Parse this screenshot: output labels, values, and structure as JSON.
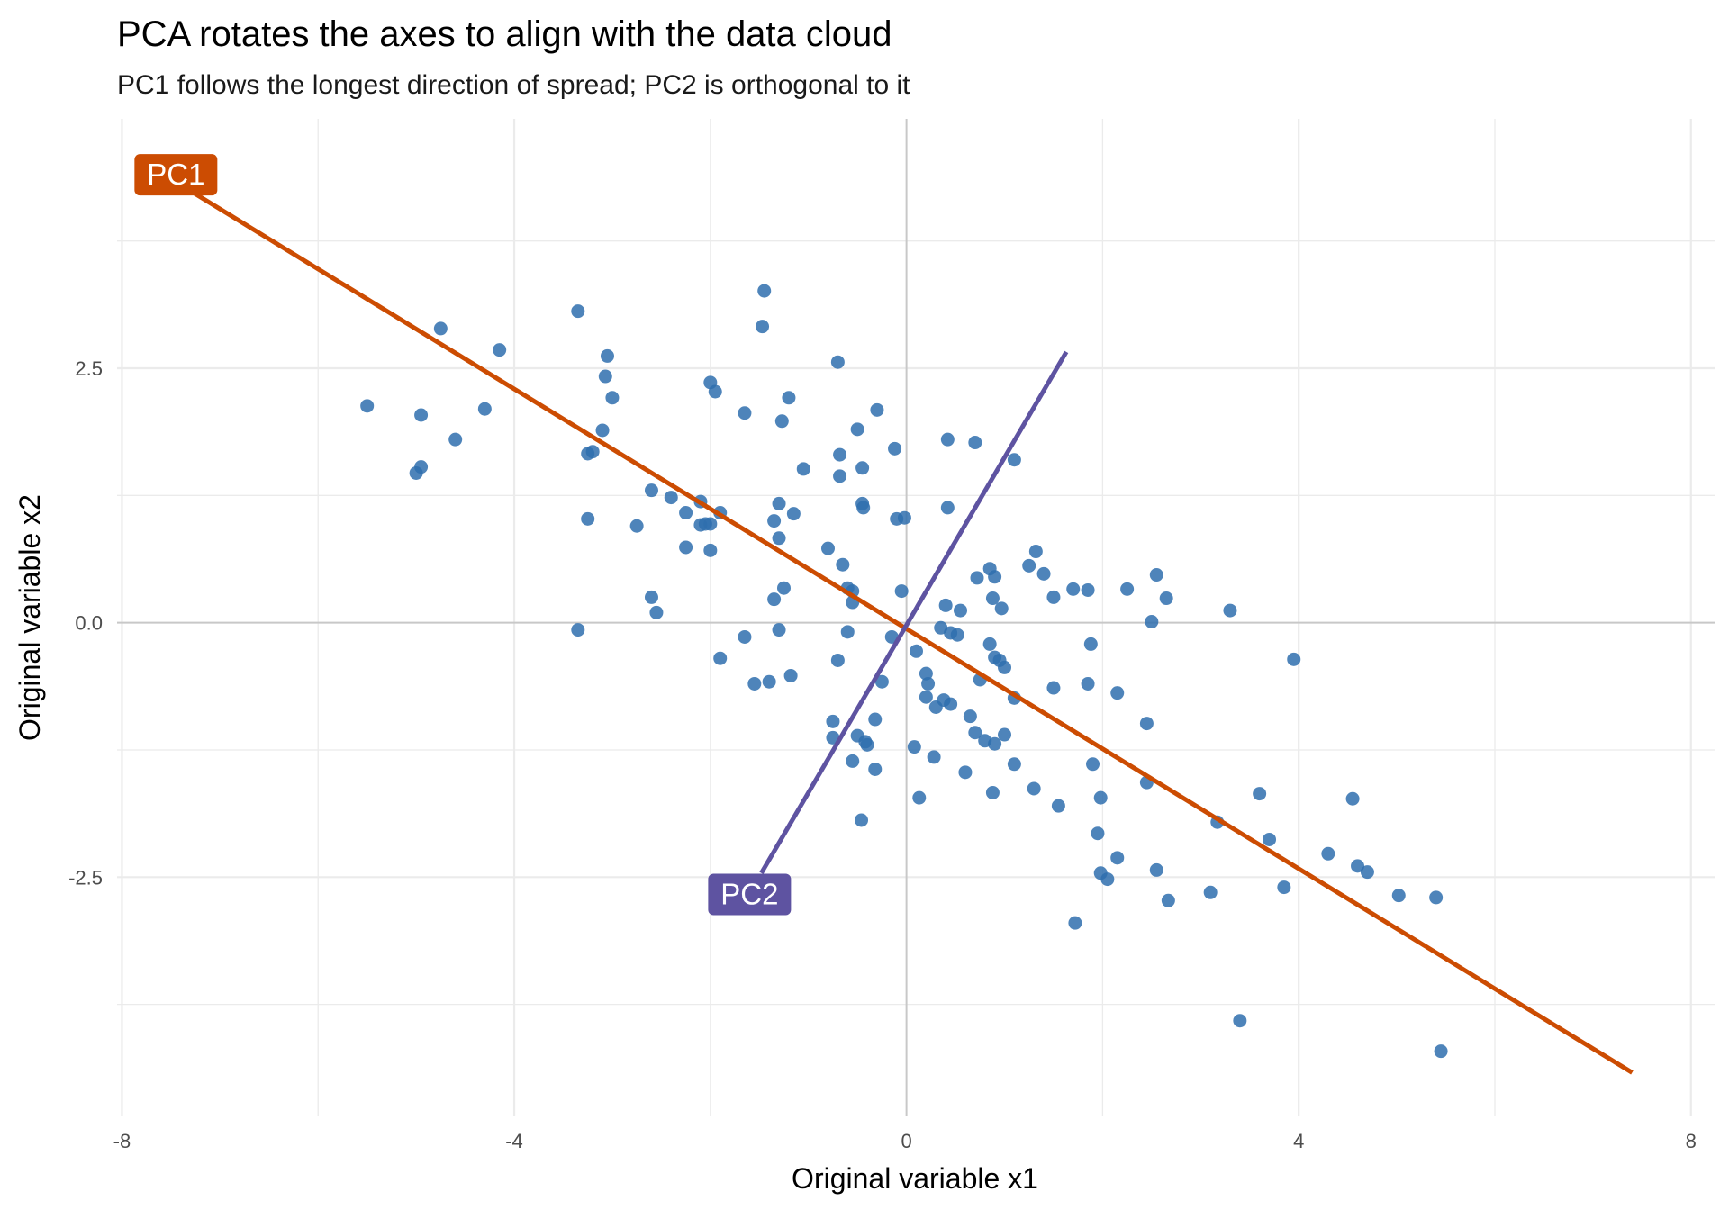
{
  "chart_data": {
    "type": "scatter",
    "title": "PCA rotates the axes to align with the data cloud",
    "subtitle": "PC1 follows the longest direction of spread; PC2 is orthogonal to it",
    "xlabel": "Original variable x1",
    "ylabel": "Original variable x2",
    "xlim": [
      -8.05,
      8.25
    ],
    "ylim": [
      -4.85,
      4.95
    ],
    "x_ticks": [
      -8,
      -4,
      0,
      4,
      8
    ],
    "x_tick_labels": [
      "-8",
      "-4",
      "0",
      "4",
      "8"
    ],
    "y_ticks": [
      -2.5,
      0,
      2.5
    ],
    "y_tick_labels": [
      "-2.5",
      "0.0",
      "2.5"
    ],
    "grid": true,
    "colors": {
      "points": "#2f6fae",
      "pc1": "#cc4c02",
      "pc2": "#5e53a1",
      "grid": "#ebebeb",
      "zero_line": "#c8c8c8"
    },
    "points": [
      {
        "x": -5.5,
        "y": 2.13
      },
      {
        "x": -4.95,
        "y": 2.04
      },
      {
        "x": -4.75,
        "y": 2.89
      },
      {
        "x": -4.6,
        "y": 1.8
      },
      {
        "x": -4.95,
        "y": 1.53
      },
      {
        "x": -5.0,
        "y": 1.47
      },
      {
        "x": -4.3,
        "y": 2.1
      },
      {
        "x": -4.15,
        "y": 2.68
      },
      {
        "x": -3.35,
        "y": 3.06
      },
      {
        "x": -3.05,
        "y": 2.62
      },
      {
        "x": -3.07,
        "y": 2.42
      },
      {
        "x": -3.0,
        "y": 2.21
      },
      {
        "x": -3.2,
        "y": 1.68
      },
      {
        "x": -3.25,
        "y": 1.66
      },
      {
        "x": -3.1,
        "y": 1.89
      },
      {
        "x": -3.25,
        "y": 1.02
      },
      {
        "x": -2.75,
        "y": 0.95
      },
      {
        "x": -2.6,
        "y": 1.3
      },
      {
        "x": -2.4,
        "y": 1.23
      },
      {
        "x": -2.25,
        "y": 1.08
      },
      {
        "x": -2.1,
        "y": 1.19
      },
      {
        "x": -2.1,
        "y": 0.96
      },
      {
        "x": -2.05,
        "y": 0.97
      },
      {
        "x": -2.0,
        "y": 0.97
      },
      {
        "x": -2.0,
        "y": 2.36
      },
      {
        "x": -1.95,
        "y": 2.27
      },
      {
        "x": -1.9,
        "y": 1.08
      },
      {
        "x": -2.25,
        "y": 0.74
      },
      {
        "x": -2.0,
        "y": 0.71
      },
      {
        "x": -2.6,
        "y": 0.25
      },
      {
        "x": -2.55,
        "y": 0.1
      },
      {
        "x": -3.35,
        "y": -0.07
      },
      {
        "x": -1.65,
        "y": 2.06
      },
      {
        "x": -1.45,
        "y": 3.26
      },
      {
        "x": -1.47,
        "y": 2.91
      },
      {
        "x": -1.2,
        "y": 2.21
      },
      {
        "x": -1.27,
        "y": 1.98
      },
      {
        "x": -1.3,
        "y": 1.17
      },
      {
        "x": -1.15,
        "y": 1.07
      },
      {
        "x": -1.35,
        "y": 1.0
      },
      {
        "x": -1.3,
        "y": 0.83
      },
      {
        "x": -1.05,
        "y": 1.51
      },
      {
        "x": -0.7,
        "y": 2.56
      },
      {
        "x": -0.68,
        "y": 1.65
      },
      {
        "x": -0.68,
        "y": 1.44
      },
      {
        "x": -0.5,
        "y": 1.9
      },
      {
        "x": -0.3,
        "y": 2.09
      },
      {
        "x": -0.12,
        "y": 1.71
      },
      {
        "x": -0.45,
        "y": 1.52
      },
      {
        "x": -0.45,
        "y": 1.17
      },
      {
        "x": -0.44,
        "y": 1.13
      },
      {
        "x": -0.1,
        "y": 1.02
      },
      {
        "x": -0.02,
        "y": 1.03
      },
      {
        "x": 0.42,
        "y": 1.8
      },
      {
        "x": 0.7,
        "y": 1.77
      },
      {
        "x": 1.1,
        "y": 1.6
      },
      {
        "x": 0.42,
        "y": 1.13
      },
      {
        "x": -0.8,
        "y": 0.73
      },
      {
        "x": -0.65,
        "y": 0.57
      },
      {
        "x": -0.6,
        "y": 0.34
      },
      {
        "x": -0.55,
        "y": 0.31
      },
      {
        "x": -0.55,
        "y": 0.2
      },
      {
        "x": -0.05,
        "y": 0.31
      },
      {
        "x": -1.25,
        "y": 0.34
      },
      {
        "x": -1.35,
        "y": 0.23
      },
      {
        "x": -1.3,
        "y": -0.07
      },
      {
        "x": -1.65,
        "y": -0.14
      },
      {
        "x": -1.9,
        "y": -0.35
      },
      {
        "x": -1.55,
        "y": -0.6
      },
      {
        "x": -1.4,
        "y": -0.58
      },
      {
        "x": -1.18,
        "y": -0.52
      },
      {
        "x": -0.6,
        "y": -0.09
      },
      {
        "x": -0.7,
        "y": -0.37
      },
      {
        "x": -0.25,
        "y": -0.58
      },
      {
        "x": -0.15,
        "y": -0.14
      },
      {
        "x": 0.1,
        "y": -0.28
      },
      {
        "x": 0.35,
        "y": -0.05
      },
      {
        "x": 0.4,
        "y": 0.17
      },
      {
        "x": 0.45,
        "y": -0.1
      },
      {
        "x": 0.52,
        "y": -0.12
      },
      {
        "x": 0.55,
        "y": 0.12
      },
      {
        "x": 0.72,
        "y": 0.44
      },
      {
        "x": 0.85,
        "y": 0.53
      },
      {
        "x": 0.9,
        "y": 0.45
      },
      {
        "x": 0.88,
        "y": 0.24
      },
      {
        "x": 0.97,
        "y": 0.14
      },
      {
        "x": 1.32,
        "y": 0.7
      },
      {
        "x": 1.25,
        "y": 0.56
      },
      {
        "x": 1.4,
        "y": 0.48
      },
      {
        "x": 1.5,
        "y": 0.25
      },
      {
        "x": 1.7,
        "y": 0.33
      },
      {
        "x": 1.85,
        "y": 0.32
      },
      {
        "x": 2.25,
        "y": 0.33
      },
      {
        "x": 2.55,
        "y": 0.47
      },
      {
        "x": 2.65,
        "y": 0.24
      },
      {
        "x": 2.5,
        "y": 0.01
      },
      {
        "x": 3.3,
        "y": 0.12
      },
      {
        "x": 3.95,
        "y": -0.36
      },
      {
        "x": 0.2,
        "y": -0.5
      },
      {
        "x": 0.22,
        "y": -0.6
      },
      {
        "x": 0.2,
        "y": -0.73
      },
      {
        "x": 0.3,
        "y": -0.83
      },
      {
        "x": 0.38,
        "y": -0.76
      },
      {
        "x": 0.45,
        "y": -0.8
      },
      {
        "x": 0.85,
        "y": -0.21
      },
      {
        "x": 0.9,
        "y": -0.34
      },
      {
        "x": 0.95,
        "y": -0.37
      },
      {
        "x": 1.0,
        "y": -0.44
      },
      {
        "x": 0.75,
        "y": -0.56
      },
      {
        "x": 1.1,
        "y": -0.74
      },
      {
        "x": 1.5,
        "y": -0.64
      },
      {
        "x": 1.88,
        "y": -0.21
      },
      {
        "x": 1.85,
        "y": -0.6
      },
      {
        "x": 2.15,
        "y": -0.69
      },
      {
        "x": 0.65,
        "y": -0.92
      },
      {
        "x": 0.7,
        "y": -1.08
      },
      {
        "x": 0.8,
        "y": -1.16
      },
      {
        "x": 0.9,
        "y": -1.19
      },
      {
        "x": 1.0,
        "y": -1.1
      },
      {
        "x": 2.45,
        "y": -0.99
      },
      {
        "x": -0.75,
        "y": -0.97
      },
      {
        "x": -0.75,
        "y": -1.13
      },
      {
        "x": -0.5,
        "y": -1.11
      },
      {
        "x": -0.42,
        "y": -1.17
      },
      {
        "x": -0.4,
        "y": -1.2
      },
      {
        "x": -0.32,
        "y": -0.95
      },
      {
        "x": -0.55,
        "y": -1.36
      },
      {
        "x": -0.32,
        "y": -1.44
      },
      {
        "x": 0.08,
        "y": -1.22
      },
      {
        "x": 0.28,
        "y": -1.32
      },
      {
        "x": 0.6,
        "y": -1.47
      },
      {
        "x": 1.1,
        "y": -1.39
      },
      {
        "x": 1.3,
        "y": -1.63
      },
      {
        "x": 0.88,
        "y": -1.67
      },
      {
        "x": 0.13,
        "y": -1.72
      },
      {
        "x": -0.46,
        "y": -1.94
      },
      {
        "x": 1.55,
        "y": -1.8
      },
      {
        "x": 1.9,
        "y": -1.39
      },
      {
        "x": 1.98,
        "y": -1.72
      },
      {
        "x": 2.45,
        "y": -1.57
      },
      {
        "x": 1.95,
        "y": -2.07
      },
      {
        "x": 2.15,
        "y": -2.31
      },
      {
        "x": 1.98,
        "y": -2.46
      },
      {
        "x": 2.05,
        "y": -2.52
      },
      {
        "x": 1.72,
        "y": -2.95
      },
      {
        "x": 2.55,
        "y": -2.43
      },
      {
        "x": 2.67,
        "y": -2.73
      },
      {
        "x": 3.1,
        "y": -2.65
      },
      {
        "x": 3.17,
        "y": -1.96
      },
      {
        "x": 3.6,
        "y": -1.68
      },
      {
        "x": 3.7,
        "y": -2.13
      },
      {
        "x": 3.85,
        "y": -2.6
      },
      {
        "x": 4.3,
        "y": -2.27
      },
      {
        "x": 4.55,
        "y": -1.73
      },
      {
        "x": 4.6,
        "y": -2.39
      },
      {
        "x": 4.7,
        "y": -2.45
      },
      {
        "x": 5.02,
        "y": -2.68
      },
      {
        "x": 5.4,
        "y": -2.7
      },
      {
        "x": 3.4,
        "y": -3.91
      },
      {
        "x": 5.45,
        "y": -4.21
      }
    ],
    "lines": [
      {
        "name": "PC1",
        "x": [
          -7.35,
          7.4
        ],
        "y": [
          4.27,
          -4.42
        ]
      },
      {
        "name": "PC2",
        "x": [
          -1.48,
          1.63
        ],
        "y": [
          -2.46,
          2.66
        ]
      }
    ],
    "annotations": [
      {
        "text": "PC1",
        "x": -7.45,
        "y": 4.4
      },
      {
        "text": "PC2",
        "x": -1.6,
        "y": -2.67
      }
    ]
  }
}
